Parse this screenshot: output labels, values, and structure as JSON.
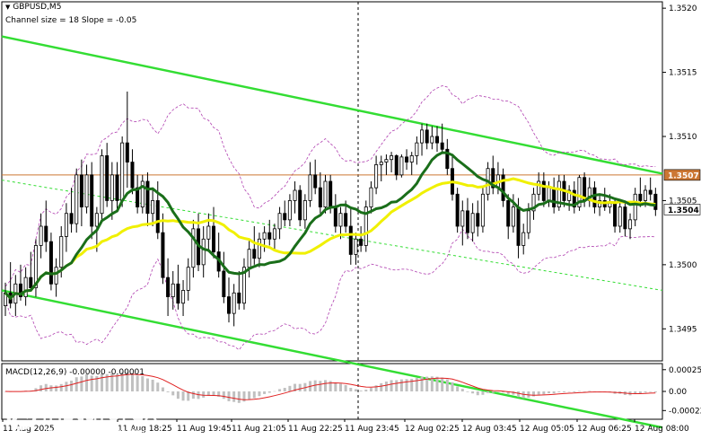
{
  "header": {
    "symbol": "GBPUSD,M5",
    "channel_info": "Channel size = 18 Slope = -0.05",
    "macd_label": "MACD(12,26,9) -0.00000 -0.00001"
  },
  "watermark": {
    "brand": "instaforex",
    "tagline": "Instant Forex Trading"
  },
  "colors": {
    "background": "#ffffff",
    "candle": "#000000",
    "ma_fast": "#1a6e1a",
    "ma_slow": "#f0f000",
    "channel": "#33dd33",
    "bollinger": "#b040b0",
    "price_line": "#cc7733",
    "macd_hist": "#c0c0c0",
    "macd_signal": "#e02020",
    "vline": "#000000"
  },
  "chart_data": {
    "type": "candlestick",
    "symbol": "GBPUSD",
    "timeframe": "M5",
    "ylim": [
      1.34925,
      1.35205
    ],
    "yticks": [
      "1.3520",
      "1.3515",
      "1.3510",
      "1.3505",
      "1.3500",
      "1.3495"
    ],
    "ytick_values": [
      1.352,
      1.3515,
      1.351,
      1.3505,
      1.35,
      1.3495
    ],
    "xticks": [
      "11 Aug 2025",
      "11 Aug 18:25",
      "11 Aug 19:45",
      "11 Aug 21:05",
      "11 Aug 22:25",
      "11 Aug 23:45",
      "12 Aug 02:25",
      "12 Aug 03:45",
      "12 Aug 05:05",
      "12 Aug 06:25",
      "12 Aug 08:00"
    ],
    "reference_price": {
      "label": "1.3507",
      "value": 1.3507
    },
    "current_price": {
      "label": "1.3504",
      "value": 1.35043
    },
    "channel": {
      "upper": [
        [
          0,
          1.35178
        ],
        [
          132,
          1.35071
        ]
      ],
      "lower": [
        [
          0,
          1.3498
        ],
        [
          132,
          1.34873
        ]
      ],
      "mid": [
        [
          0,
          1.35066
        ],
        [
          132,
          1.3498
        ]
      ]
    },
    "candles": [
      [
        1.34968,
        1.34986,
        1.3496,
        1.34978
      ],
      [
        1.34978,
        1.35002,
        1.34966,
        1.3497
      ],
      [
        1.3497,
        1.34992,
        1.3496,
        1.34985
      ],
      [
        1.34985,
        1.35,
        1.34972,
        1.34975
      ],
      [
        1.34975,
        1.34998,
        1.34968,
        1.3499
      ],
      [
        1.3499,
        1.3501,
        1.3498,
        1.34982
      ],
      [
        1.34982,
        1.3502,
        1.34975,
        1.35015
      ],
      [
        1.35015,
        1.3504,
        1.35005,
        1.3503
      ],
      [
        1.3503,
        1.3505,
        1.3501,
        1.35018
      ],
      [
        1.35018,
        1.35025,
        1.3498,
        1.34985
      ],
      [
        1.34985,
        1.35005,
        1.34975,
        1.34998
      ],
      [
        1.34998,
        1.3503,
        1.3499,
        1.35022
      ],
      [
        1.35022,
        1.35048,
        1.3501,
        1.3504
      ],
      [
        1.3504,
        1.3506,
        1.35025,
        1.35032
      ],
      [
        1.35032,
        1.35075,
        1.35025,
        1.3507
      ],
      [
        1.3507,
        1.35082,
        1.3503,
        1.35045
      ],
      [
        1.35045,
        1.35078,
        1.3504,
        1.3507
      ],
      [
        1.3507,
        1.3508,
        1.3502,
        1.3503
      ],
      [
        1.3503,
        1.35045,
        1.3501,
        1.3504
      ],
      [
        1.3504,
        1.3509,
        1.35035,
        1.35085
      ],
      [
        1.35085,
        1.35095,
        1.35045,
        1.3505
      ],
      [
        1.3505,
        1.3508,
        1.35035,
        1.3507
      ],
      [
        1.3507,
        1.3508,
        1.35042,
        1.3505
      ],
      [
        1.3505,
        1.351,
        1.35045,
        1.35095
      ],
      [
        1.35095,
        1.35135,
        1.3506,
        1.3508
      ],
      [
        1.3508,
        1.3509,
        1.35055,
        1.3506
      ],
      [
        1.3506,
        1.3507,
        1.3504,
        1.35045
      ],
      [
        1.35045,
        1.3507,
        1.3504,
        1.35065
      ],
      [
        1.35065,
        1.35072,
        1.3503,
        1.3504
      ],
      [
        1.3504,
        1.3506,
        1.3503,
        1.3505
      ],
      [
        1.3505,
        1.35065,
        1.3502,
        1.35025
      ],
      [
        1.35025,
        1.3504,
        1.34985,
        1.3499
      ],
      [
        1.3499,
        1.35005,
        1.3496,
        1.34975
      ],
      [
        1.34975,
        1.34995,
        1.34965,
        1.34985
      ],
      [
        1.34985,
        1.35,
        1.34965,
        1.3497
      ],
      [
        1.3497,
        1.34988,
        1.3496,
        1.3498
      ],
      [
        1.3498,
        1.35005,
        1.34972,
        1.34998
      ],
      [
        1.34998,
        1.35035,
        1.3499,
        1.35028
      ],
      [
        1.35028,
        1.3504,
        1.34995,
        1.35
      ],
      [
        1.35,
        1.3503,
        1.3499,
        1.3502
      ],
      [
        1.3502,
        1.3504,
        1.3501,
        1.3503
      ],
      [
        1.3503,
        1.35045,
        1.35005,
        1.3501
      ],
      [
        1.3501,
        1.35025,
        1.3499,
        1.34995
      ],
      [
        1.34995,
        1.3501,
        1.3497,
        1.34975
      ],
      [
        1.34975,
        1.3499,
        1.34955,
        1.34962
      ],
      [
        1.34962,
        1.34985,
        1.34952,
        1.34978
      ],
      [
        1.34978,
        1.34995,
        1.34965,
        1.3497
      ],
      [
        1.3497,
        1.35005,
        1.34965,
        1.34998
      ],
      [
        1.34998,
        1.3502,
        1.3499,
        1.35012
      ],
      [
        1.35012,
        1.3503,
        1.35,
        1.35005
      ],
      [
        1.35005,
        1.35025,
        1.34998,
        1.3502
      ],
      [
        1.3502,
        1.3503,
        1.3501,
        1.35025
      ],
      [
        1.35025,
        1.35035,
        1.35015,
        1.3502
      ],
      [
        1.3502,
        1.35032,
        1.35012,
        1.35028
      ],
      [
        1.35028,
        1.35045,
        1.3502,
        1.3504
      ],
      [
        1.3504,
        1.3505,
        1.3503,
        1.35035
      ],
      [
        1.35035,
        1.35055,
        1.3503,
        1.3505
      ],
      [
        1.3505,
        1.35065,
        1.3504,
        1.35058
      ],
      [
        1.35058,
        1.35062,
        1.3503,
        1.35035
      ],
      [
        1.35035,
        1.35055,
        1.35028,
        1.3505
      ],
      [
        1.3505,
        1.3508,
        1.35045,
        1.3507
      ],
      [
        1.3507,
        1.35082,
        1.35055,
        1.3506
      ],
      [
        1.3506,
        1.35072,
        1.3504,
        1.35045
      ],
      [
        1.35045,
        1.3507,
        1.3504,
        1.35065
      ],
      [
        1.35065,
        1.3507,
        1.3504,
        1.35045
      ],
      [
        1.35045,
        1.35055,
        1.35025,
        1.3503
      ],
      [
        1.3503,
        1.35045,
        1.3502,
        1.3504
      ],
      [
        1.3504,
        1.3505,
        1.35025,
        1.3503
      ],
      [
        1.3503,
        1.35045,
        1.35,
        1.35008
      ],
      [
        1.35008,
        1.35025,
        1.35,
        1.3502
      ],
      [
        1.3502,
        1.3503,
        1.3501,
        1.35015
      ],
      [
        1.35015,
        1.3505,
        1.3501,
        1.35045
      ],
      [
        1.35045,
        1.35065,
        1.3504,
        1.3506
      ],
      [
        1.3506,
        1.35085,
        1.35055,
        1.35078
      ],
      [
        1.35078,
        1.35085,
        1.35065,
        1.3508
      ],
      [
        1.3508,
        1.35086,
        1.3507,
        1.35082
      ],
      [
        1.35082,
        1.35088,
        1.35072,
        1.35085
      ],
      [
        1.35085,
        1.35086,
        1.35066,
        1.3507
      ],
      [
        1.3507,
        1.35086,
        1.35068,
        1.35084
      ],
      [
        1.35084,
        1.3509,
        1.35074,
        1.3508
      ],
      [
        1.3508,
        1.35088,
        1.3507,
        1.35085
      ],
      [
        1.35085,
        1.351,
        1.35078,
        1.35095
      ],
      [
        1.35095,
        1.3511,
        1.35085,
        1.35105
      ],
      [
        1.35105,
        1.3511,
        1.3509,
        1.35095
      ],
      [
        1.35095,
        1.35108,
        1.3509,
        1.351
      ],
      [
        1.351,
        1.35108,
        1.35088,
        1.35095
      ],
      [
        1.35095,
        1.3511,
        1.35088,
        1.3509
      ],
      [
        1.3509,
        1.35098,
        1.3507,
        1.35075
      ],
      [
        1.35075,
        1.35085,
        1.3505,
        1.35055
      ],
      [
        1.35055,
        1.3506,
        1.35025,
        1.3503
      ],
      [
        1.3503,
        1.3505,
        1.35015,
        1.35042
      ],
      [
        1.35042,
        1.35052,
        1.3502,
        1.35025
      ],
      [
        1.35025,
        1.35048,
        1.35018,
        1.3504
      ],
      [
        1.3504,
        1.3505,
        1.35022,
        1.3503
      ],
      [
        1.3503,
        1.3506,
        1.35025,
        1.35055
      ],
      [
        1.35055,
        1.3508,
        1.3505,
        1.35075
      ],
      [
        1.35075,
        1.35085,
        1.35055,
        1.3506
      ],
      [
        1.3506,
        1.3508,
        1.35055,
        1.3507
      ],
      [
        1.3507,
        1.35075,
        1.35045,
        1.3505
      ],
      [
        1.3505,
        1.35055,
        1.3502,
        1.3503
      ],
      [
        1.3503,
        1.35055,
        1.35025,
        1.35045
      ],
      [
        1.35045,
        1.35052,
        1.35005,
        1.35015
      ],
      [
        1.35015,
        1.35032,
        1.35008,
        1.35025
      ],
      [
        1.35025,
        1.35048,
        1.3502,
        1.35042
      ],
      [
        1.35042,
        1.3506,
        1.35035,
        1.35055
      ],
      [
        1.35055,
        1.35072,
        1.3505,
        1.35065
      ],
      [
        1.35065,
        1.35072,
        1.35045,
        1.3505
      ],
      [
        1.3505,
        1.35065,
        1.35045,
        1.3506
      ],
      [
        1.3506,
        1.35068,
        1.3504,
        1.35045
      ],
      [
        1.35045,
        1.3507,
        1.35042,
        1.35065
      ],
      [
        1.35065,
        1.3507,
        1.35045,
        1.3505
      ],
      [
        1.3505,
        1.35062,
        1.35042,
        1.35058
      ],
      [
        1.35058,
        1.35065,
        1.3504,
        1.35045
      ],
      [
        1.35045,
        1.3507,
        1.35042,
        1.35068
      ],
      [
        1.35068,
        1.35072,
        1.35045,
        1.3505
      ],
      [
        1.3505,
        1.35068,
        1.35045,
        1.3506
      ],
      [
        1.3506,
        1.35065,
        1.3504,
        1.35045
      ],
      [
        1.35045,
        1.35055,
        1.35038,
        1.3505
      ],
      [
        1.3505,
        1.3506,
        1.35042,
        1.35045
      ],
      [
        1.35045,
        1.35055,
        1.3504,
        1.35048
      ],
      [
        1.35048,
        1.35052,
        1.35025,
        1.3503
      ],
      [
        1.3503,
        1.3505,
        1.35025,
        1.35045
      ],
      [
        1.35045,
        1.3505,
        1.35022,
        1.35028
      ],
      [
        1.35028,
        1.3504,
        1.3502,
        1.35035
      ],
      [
        1.35035,
        1.3506,
        1.3503,
        1.35055
      ],
      [
        1.35055,
        1.35068,
        1.35045,
        1.3505
      ],
      [
        1.3505,
        1.35062,
        1.35045,
        1.35058
      ],
      [
        1.35058,
        1.35068,
        1.3505,
        1.35055
      ],
      [
        1.35055,
        1.3506,
        1.35038,
        1.35043
      ]
    ],
    "bollinger": {
      "upper_base": 1.3511,
      "lower_base": 1.34945
    },
    "macd": {
      "ylim": [
        -0.00032,
        0.00032
      ],
      "yticks": [
        "0.00025",
        "0.00",
        "-0.00022"
      ],
      "ytick_values": [
        0.00025,
        0.0,
        -0.00022
      ],
      "current": -0.0,
      "signal_current": -1e-05
    }
  }
}
